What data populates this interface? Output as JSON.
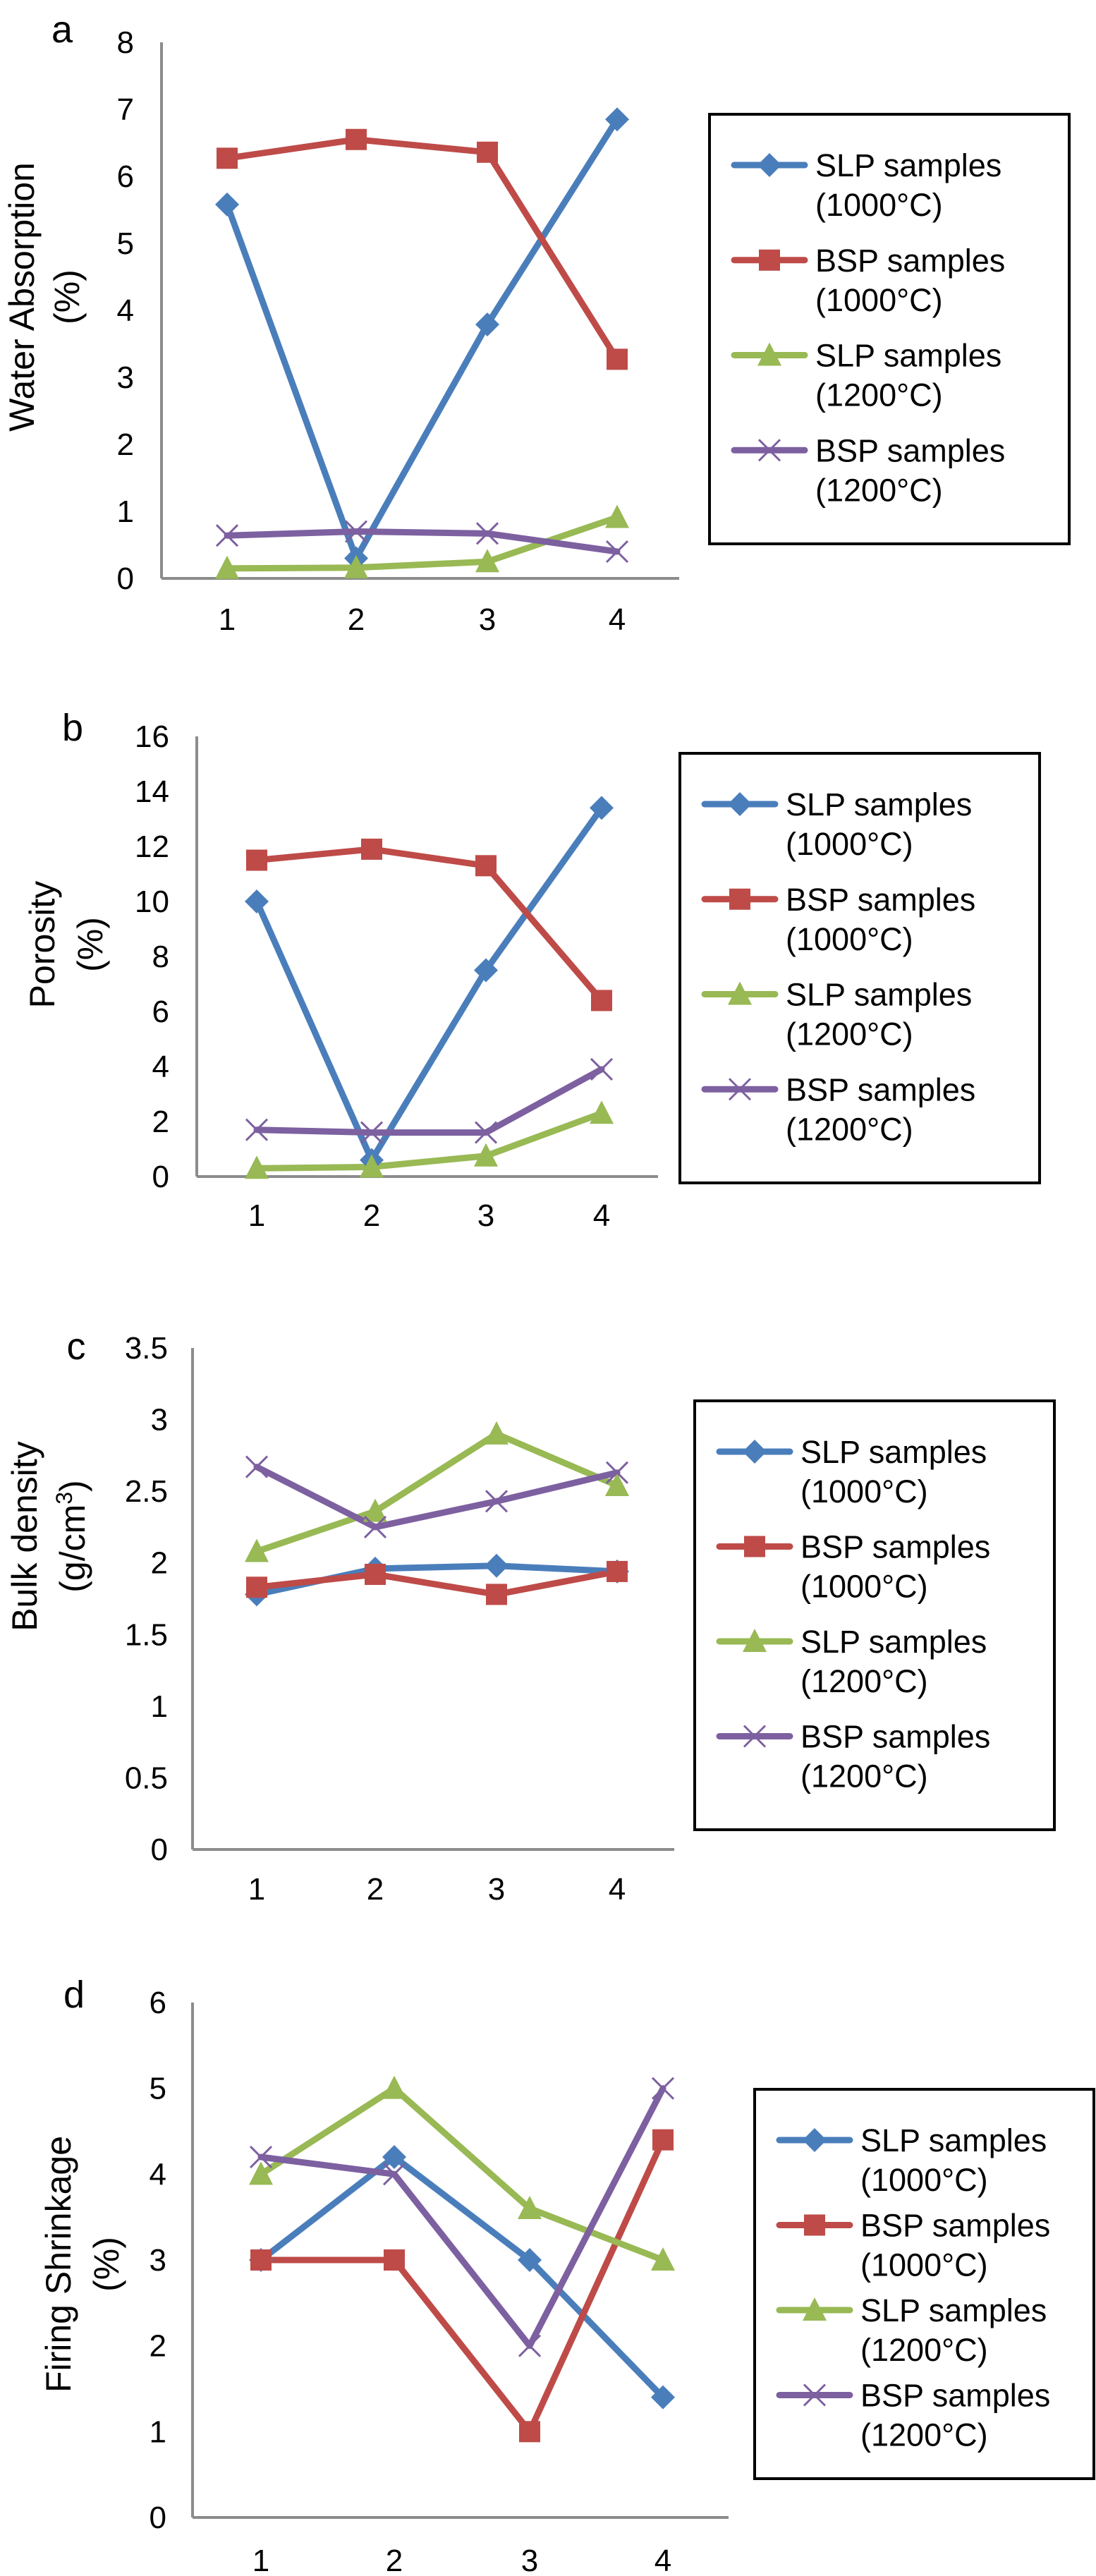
{
  "series_styles": [
    {
      "key": "slp1000",
      "color": "#4a7ebb",
      "marker": "diamond"
    },
    {
      "key": "bsp1000",
      "color": "#be4b48",
      "marker": "square"
    },
    {
      "key": "slp1200",
      "color": "#98b954",
      "marker": "triangle"
    },
    {
      "key": "bsp1200",
      "color": "#7d60a0",
      "marker": "x"
    }
  ],
  "legend": {
    "entries": [
      {
        "line1": "SLP samples",
        "line2": "(1000°C)"
      },
      {
        "line1": "BSP samples",
        "line2": "(1000°C)"
      },
      {
        "line1": "SLP samples",
        "line2": "(1200°C)"
      },
      {
        "line1": "BSP samples",
        "line2": "(1200°C)"
      }
    ]
  },
  "chart_data": [
    {
      "panel": "a",
      "type": "line",
      "title": "",
      "xlabel": "",
      "ylabel": "Water Absorption (%)",
      "ylabel_lines": [
        "Water Absorption",
        "(%)"
      ],
      "categories": [
        "1",
        "2",
        "3",
        "4"
      ],
      "ylim": [
        0,
        8
      ],
      "yticks": [
        "0",
        "1",
        "2",
        "3",
        "4",
        "5",
        "6",
        "7",
        "8"
      ],
      "grid": false,
      "legend_position": "right",
      "series": [
        {
          "name": "SLP samples (1000°C)",
          "values": [
            5.58,
            0.3,
            3.79,
            6.85
          ]
        },
        {
          "name": "BSP samples (1000°C)",
          "values": [
            6.27,
            6.55,
            6.36,
            3.27
          ]
        },
        {
          "name": "SLP samples (1200°C)",
          "values": [
            0.15,
            0.16,
            0.25,
            0.91
          ]
        },
        {
          "name": "BSP samples (1200°C)",
          "values": [
            0.64,
            0.7,
            0.67,
            0.4
          ]
        }
      ]
    },
    {
      "panel": "b",
      "type": "line",
      "title": "",
      "xlabel": "",
      "ylabel": "Porosity (%)",
      "ylabel_lines": [
        "Porosity",
        "(%)"
      ],
      "categories": [
        "1",
        "2",
        "3",
        "4"
      ],
      "ylim": [
        0,
        16
      ],
      "yticks": [
        "0",
        "2",
        "4",
        "6",
        "8",
        "10",
        "12",
        "14",
        "16"
      ],
      "grid": false,
      "legend_position": "right",
      "series": [
        {
          "name": "SLP samples (1000°C)",
          "values": [
            10.0,
            0.6,
            7.5,
            13.4
          ]
        },
        {
          "name": "BSP samples (1000°C)",
          "values": [
            11.5,
            11.9,
            11.3,
            6.4
          ]
        },
        {
          "name": "SLP samples (1200°C)",
          "values": [
            0.3,
            0.35,
            0.75,
            2.3
          ]
        },
        {
          "name": "BSP samples (1200°C)",
          "values": [
            1.7,
            1.6,
            1.6,
            3.9
          ]
        }
      ]
    },
    {
      "panel": "c",
      "type": "line",
      "title": "",
      "xlabel": "",
      "ylabel": "Bulk density (g/cm3)",
      "ylabel_lines": [
        "Bulk density",
        "(g/cm",
        "3",
        ")"
      ],
      "categories": [
        "1",
        "2",
        "3",
        "4"
      ],
      "ylim": [
        0,
        3.5
      ],
      "yticks": [
        "0",
        "0.5",
        "1",
        "1.5",
        "2",
        "2.5",
        "3",
        "3.5"
      ],
      "grid": false,
      "legend_position": "right",
      "series": [
        {
          "name": "SLP samples (1000°C)",
          "values": [
            1.78,
            1.96,
            1.98,
            1.94
          ]
        },
        {
          "name": "BSP samples (1000°C)",
          "values": [
            1.83,
            1.92,
            1.78,
            1.94
          ]
        },
        {
          "name": "SLP samples (1200°C)",
          "values": [
            2.08,
            2.36,
            2.9,
            2.54
          ]
        },
        {
          "name": "BSP samples (1200°C)",
          "values": [
            2.67,
            2.25,
            2.43,
            2.63
          ]
        }
      ]
    },
    {
      "panel": "d",
      "type": "line",
      "title": "",
      "xlabel": "",
      "ylabel": "Firing Shrinkage (%)",
      "ylabel_lines": [
        "Firing Shrinkage",
        "(%)"
      ],
      "categories": [
        "1",
        "2",
        "3",
        "4"
      ],
      "ylim": [
        0,
        6
      ],
      "yticks": [
        "0",
        "1",
        "2",
        "3",
        "4",
        "5",
        "6"
      ],
      "grid": false,
      "legend_position": "right",
      "series": [
        {
          "name": "SLP samples (1000°C)",
          "values": [
            3.0,
            4.2,
            3.0,
            1.4
          ]
        },
        {
          "name": "BSP samples (1000°C)",
          "values": [
            3.0,
            3.0,
            1.0,
            4.4
          ]
        },
        {
          "name": "SLP samples (1200°C)",
          "values": [
            4.0,
            5.0,
            3.6,
            3.0
          ]
        },
        {
          "name": "BSP samples (1200°C)",
          "values": [
            4.2,
            4.0,
            2.0,
            5.0
          ]
        }
      ]
    }
  ]
}
